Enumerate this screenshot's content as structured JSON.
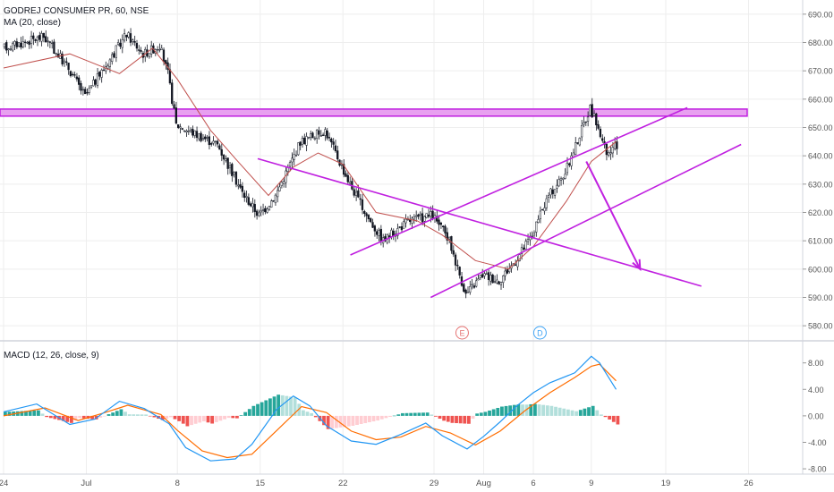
{
  "header": {
    "symbol_line": "GODREJ CONSUMER PR, 60, NSE",
    "ma_line": "MA (20, close)",
    "macd_line": "MACD (12, 26, close, 9)"
  },
  "colors": {
    "up": "#26a69a",
    "down": "#ef5350",
    "candle": "#131722",
    "ma": "#c0504d",
    "drawing": "#c020e0",
    "zone_fill": "#e8a0f0",
    "macd_line": "#2196f3",
    "signal_line": "#ff6d00",
    "hist_up_strong": "#26a69a",
    "hist_up_weak": "#b2dfdb",
    "hist_down_strong": "#ef5350",
    "hist_down_weak": "#ffcdd2",
    "event_E": "#e57373",
    "event_D": "#42a5f5",
    "axis_text": "#555555",
    "grid": "#eeeeee"
  },
  "chart_data": {
    "type": "candlestick",
    "price_axis": {
      "min": 575,
      "max": 695,
      "ticks": [
        "690.00",
        "680.00",
        "670.00",
        "660.00",
        "650.00",
        "640.00",
        "630.00",
        "620.00",
        "610.00",
        "600.00",
        "590.00",
        "580.00"
      ]
    },
    "macd_axis": {
      "min": -8.8,
      "max": 11.2,
      "ticks": [
        "8.00",
        "4.00",
        "0.00",
        "-4.00",
        "-8.00"
      ]
    },
    "x_axis": {
      "bar_count": 190,
      "labels": [
        {
          "bar": 0,
          "text": "24"
        },
        {
          "bar": 10,
          "text": "Jul"
        },
        {
          "bar": 21,
          "text": "8"
        },
        {
          "bar": 31,
          "text": "15"
        },
        {
          "bar": 41,
          "text": "22"
        },
        {
          "bar": 52,
          "text": "29"
        },
        {
          "bar": 58,
          "text": "Aug"
        },
        {
          "bar": 64,
          "text": "6"
        },
        {
          "bar": 71,
          "text": "9"
        },
        {
          "bar": 80,
          "text": "19"
        },
        {
          "bar": 90,
          "text": "26"
        }
      ]
    },
    "price_path": [
      {
        "bar": 0,
        "v": 678
      },
      {
        "bar": 5,
        "v": 682
      },
      {
        "bar": 8,
        "v": 671
      },
      {
        "bar": 10,
        "v": 661
      },
      {
        "bar": 13,
        "v": 674
      },
      {
        "bar": 15,
        "v": 683
      },
      {
        "bar": 17,
        "v": 676
      },
      {
        "bar": 19,
        "v": 679
      },
      {
        "bar": 20,
        "v": 669
      },
      {
        "bar": 21,
        "v": 651
      },
      {
        "bar": 26,
        "v": 644
      },
      {
        "bar": 29,
        "v": 627
      },
      {
        "bar": 31,
        "v": 619
      },
      {
        "bar": 33,
        "v": 626
      },
      {
        "bar": 36,
        "v": 645
      },
      {
        "bar": 39,
        "v": 649
      },
      {
        "bar": 42,
        "v": 630
      },
      {
        "bar": 44,
        "v": 619
      },
      {
        "bar": 46,
        "v": 610
      },
      {
        "bar": 49,
        "v": 617
      },
      {
        "bar": 52,
        "v": 619
      },
      {
        "bar": 54,
        "v": 610
      },
      {
        "bar": 56,
        "v": 591
      },
      {
        "bar": 58,
        "v": 598
      },
      {
        "bar": 60,
        "v": 596
      },
      {
        "bar": 62,
        "v": 603
      },
      {
        "bar": 64,
        "v": 612
      },
      {
        "bar": 66,
        "v": 626
      },
      {
        "bar": 68,
        "v": 634
      },
      {
        "bar": 71,
        "v": 657
      },
      {
        "bar": 72,
        "v": 650
      },
      {
        "bar": 73,
        "v": 640
      },
      {
        "bar": 74,
        "v": 643
      }
    ],
    "ma_path": [
      {
        "bar": 0,
        "v": 671
      },
      {
        "bar": 8,
        "v": 676
      },
      {
        "bar": 14,
        "v": 669
      },
      {
        "bar": 18,
        "v": 678
      },
      {
        "bar": 21,
        "v": 667
      },
      {
        "bar": 25,
        "v": 649
      },
      {
        "bar": 28,
        "v": 639
      },
      {
        "bar": 32,
        "v": 626
      },
      {
        "bar": 35,
        "v": 636
      },
      {
        "bar": 38,
        "v": 641
      },
      {
        "bar": 41,
        "v": 637
      },
      {
        "bar": 45,
        "v": 620
      },
      {
        "bar": 50,
        "v": 617
      },
      {
        "bar": 53,
        "v": 612
      },
      {
        "bar": 57,
        "v": 603
      },
      {
        "bar": 61,
        "v": 600
      },
      {
        "bar": 64,
        "v": 608
      },
      {
        "bar": 68,
        "v": 624
      },
      {
        "bar": 71,
        "v": 638
      },
      {
        "bar": 74,
        "v": 645
      }
    ],
    "resistance_zone": {
      "low": 654,
      "high": 656.5
    },
    "trendlines": [
      {
        "name": "descending",
        "from": {
          "bar": 30.7,
          "v": 639
        },
        "to": {
          "bar": 84.3,
          "v": 594
        }
      },
      {
        "name": "upper-channel",
        "from": {
          "bar": 41.9,
          "v": 605
        },
        "to": {
          "bar": 82.6,
          "v": 657
        }
      },
      {
        "name": "lower-channel",
        "from": {
          "bar": 51.6,
          "v": 590
        },
        "to": {
          "bar": 89.1,
          "v": 644
        }
      }
    ],
    "arrow": {
      "from": {
        "bar": 70.4,
        "v": 638
      },
      "to": {
        "bar": 76.9,
        "v": 600
      }
    },
    "events": [
      {
        "bar": 55.4,
        "label": "E"
      },
      {
        "bar": 64.8,
        "label": "D"
      }
    ],
    "macd_path": [
      {
        "bar": 0,
        "v": 0.6
      },
      {
        "bar": 4,
        "v": 1.8
      },
      {
        "bar": 8,
        "v": -1.3
      },
      {
        "bar": 11,
        "v": -0.5
      },
      {
        "bar": 14,
        "v": 2.2
      },
      {
        "bar": 17,
        "v": 1.1
      },
      {
        "bar": 20,
        "v": -1.2
      },
      {
        "bar": 22,
        "v": -4.8
      },
      {
        "bar": 25,
        "v": -6.8
      },
      {
        "bar": 28,
        "v": -6.5
      },
      {
        "bar": 30,
        "v": -4.3
      },
      {
        "bar": 33,
        "v": 1.0
      },
      {
        "bar": 35,
        "v": 3.0
      },
      {
        "bar": 37,
        "v": 1.5
      },
      {
        "bar": 39,
        "v": -1.5
      },
      {
        "bar": 42,
        "v": -3.8
      },
      {
        "bar": 45,
        "v": -4.3
      },
      {
        "bar": 48,
        "v": -2.8
      },
      {
        "bar": 51,
        "v": -1.1
      },
      {
        "bar": 53,
        "v": -3.0
      },
      {
        "bar": 56,
        "v": -5.0
      },
      {
        "bar": 58,
        "v": -3.1
      },
      {
        "bar": 60,
        "v": -0.9
      },
      {
        "bar": 62,
        "v": 1.5
      },
      {
        "bar": 64,
        "v": 3.5
      },
      {
        "bar": 66,
        "v": 5.0
      },
      {
        "bar": 69,
        "v": 6.5
      },
      {
        "bar": 71,
        "v": 9.0
      },
      {
        "bar": 72,
        "v": 8.0
      },
      {
        "bar": 74,
        "v": 4.0
      }
    ],
    "signal_path": [
      {
        "bar": 0,
        "v": 0.0
      },
      {
        "bar": 5,
        "v": 1.2
      },
      {
        "bar": 9,
        "v": -0.7
      },
      {
        "bar": 12,
        "v": 0.4
      },
      {
        "bar": 15,
        "v": 1.6
      },
      {
        "bar": 19,
        "v": 0.2
      },
      {
        "bar": 21,
        "v": -2.2
      },
      {
        "bar": 24,
        "v": -5.3
      },
      {
        "bar": 27,
        "v": -6.3
      },
      {
        "bar": 30,
        "v": -5.8
      },
      {
        "bar": 33,
        "v": -2.2
      },
      {
        "bar": 36,
        "v": 1.4
      },
      {
        "bar": 39,
        "v": 0.5
      },
      {
        "bar": 42,
        "v": -2.3
      },
      {
        "bar": 45,
        "v": -3.6
      },
      {
        "bar": 48,
        "v": -3.2
      },
      {
        "bar": 51,
        "v": -1.6
      },
      {
        "bar": 54,
        "v": -2.6
      },
      {
        "bar": 57,
        "v": -4.4
      },
      {
        "bar": 60,
        "v": -2.3
      },
      {
        "bar": 63,
        "v": 0.8
      },
      {
        "bar": 66,
        "v": 3.5
      },
      {
        "bar": 69,
        "v": 5.8
      },
      {
        "bar": 71,
        "v": 7.5
      },
      {
        "bar": 72,
        "v": 7.8
      },
      {
        "bar": 74,
        "v": 5.3
      }
    ]
  }
}
